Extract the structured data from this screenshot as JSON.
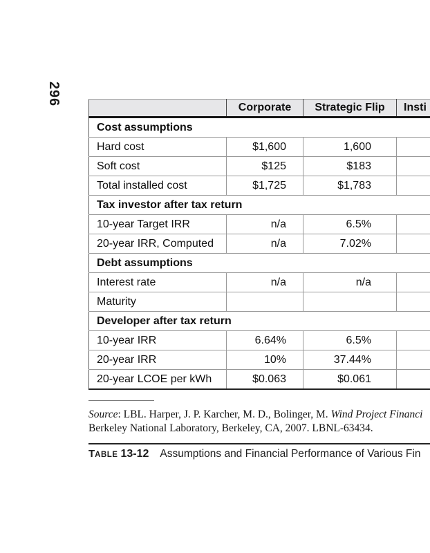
{
  "page": {
    "number": "296"
  },
  "table": {
    "columns": [
      "",
      "Corporate",
      "Strategic Flip",
      "Insti"
    ],
    "sections": [
      {
        "header": "Cost assumptions",
        "rows": [
          {
            "label": "Hard cost",
            "values": [
              "$1,600",
              "1,600",
              ""
            ]
          },
          {
            "label": "Soft cost",
            "values": [
              "$125",
              "$183",
              ""
            ]
          },
          {
            "label": "Total installed cost",
            "values": [
              "$1,725",
              "$1,783",
              ""
            ]
          }
        ]
      },
      {
        "header": "Tax investor after tax return",
        "rows": [
          {
            "label": "10-year Target IRR",
            "values": [
              "n/a",
              "6.5%",
              ""
            ]
          },
          {
            "label": "20-year IRR, Computed",
            "values": [
              "n/a",
              "7.02%",
              ""
            ]
          }
        ]
      },
      {
        "header": "Debt assumptions",
        "rows": [
          {
            "label": "Interest rate",
            "values": [
              "n/a",
              "n/a",
              ""
            ]
          },
          {
            "label": "Maturity",
            "values": [
              "",
              "",
              ""
            ]
          }
        ]
      },
      {
        "header": "Developer after tax return",
        "rows": [
          {
            "label": "10-year IRR",
            "values": [
              "6.64%",
              "6.5%",
              ""
            ]
          },
          {
            "label": "20-year IRR",
            "values": [
              "10%",
              "37.44%",
              ""
            ]
          },
          {
            "label": "20-year LCOE per kWh",
            "values": [
              "$0.063",
              "$0.061",
              ""
            ]
          }
        ]
      }
    ]
  },
  "source_note": {
    "label": "Source",
    "citation": ": LBL. Harper, J. P. Karcher, M. D., Bolinger, M. ",
    "work_title": "Wind Project Financi",
    "line2": "Berkeley National Laboratory, Berkeley, CA, 2007. LBNL-63434."
  },
  "caption": {
    "label_initial": "T",
    "label_rest": "ABLE",
    "number": "13-12",
    "text": "Assumptions and Financial Performance of Various Fin"
  },
  "colors": {
    "header_bg": "#e7e7e9",
    "grid_line": "#999999",
    "heavy_line": "#151515",
    "text": "#111111"
  }
}
